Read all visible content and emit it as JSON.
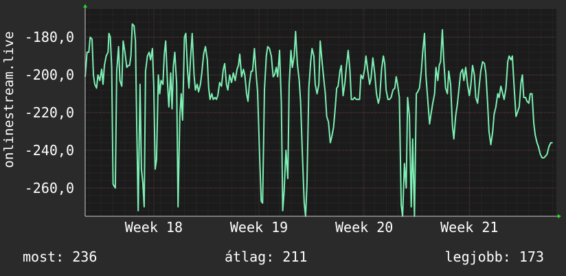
{
  "y_axis_label": "onlinestream.live",
  "stats": {
    "current": "most: 236",
    "average": "átlag: 211",
    "best": "legjobb: 173"
  },
  "colors": {
    "background": "#2a2a2a",
    "plot_background": "#1b1b1b",
    "grid": "#4a4a4a",
    "line": "#7cf0b4",
    "text": "#ffffff",
    "arrow": "#22e022"
  },
  "chart_data": {
    "type": "line",
    "ylim": [
      -275,
      -165
    ],
    "yticks": [
      -180,
      -200,
      -220,
      -240,
      -260
    ],
    "ytick_labels": [
      "-180,0",
      "-200,0",
      "-220,0",
      "-240,0",
      "-260,0"
    ],
    "xlim": [
      0,
      100
    ],
    "xticks": [
      15,
      38,
      61,
      84
    ],
    "xtick_labels": [
      "Week 18",
      "Week 19",
      "Week 20",
      "Week 21"
    ],
    "grid": true,
    "series": [
      {
        "values": [
          [
            0,
            -201
          ],
          [
            0.4,
            -188
          ],
          [
            0.8,
            -188
          ],
          [
            1.1,
            -180
          ],
          [
            1.5,
            -181
          ],
          [
            1.8,
            -200
          ],
          [
            2.1,
            -205
          ],
          [
            2.5,
            -207
          ],
          [
            2.8,
            -200
          ],
          [
            3.2,
            -203
          ],
          [
            3.6,
            -197
          ],
          [
            3.9,
            -205
          ],
          [
            4.2,
            -195
          ],
          [
            4.6,
            -190
          ],
          [
            5,
            -188
          ],
          [
            5.2,
            -178
          ],
          [
            5.5,
            -180
          ],
          [
            5.8,
            -196
          ],
          [
            6.1,
            -258
          ],
          [
            6.6,
            -260
          ],
          [
            6.9,
            -198
          ],
          [
            7.3,
            -185
          ],
          [
            7.6,
            -203
          ],
          [
            8,
            -206
          ],
          [
            8.3,
            -182
          ],
          [
            8.7,
            -188
          ],
          [
            9.1,
            -196
          ],
          [
            9.4,
            -195
          ],
          [
            9.7,
            -195
          ],
          [
            10,
            -190
          ],
          [
            10.3,
            -173
          ],
          [
            10.7,
            -174
          ],
          [
            11,
            -182
          ],
          [
            11.3,
            -230
          ],
          [
            11.6,
            -272
          ],
          [
            12,
            -205
          ],
          [
            12.3,
            -250
          ],
          [
            12.6,
            -257
          ],
          [
            12.9,
            -270
          ],
          [
            13.2,
            -198
          ],
          [
            13.6,
            -190
          ],
          [
            14,
            -188
          ],
          [
            14.3,
            -192
          ],
          [
            14.7,
            -186
          ],
          [
            15,
            -206
          ],
          [
            15.3,
            -250
          ],
          [
            15.6,
            -245
          ],
          [
            16,
            -200
          ],
          [
            16.3,
            -210
          ],
          [
            16.6,
            -203
          ],
          [
            17,
            -205
          ],
          [
            17.3,
            -189
          ],
          [
            17.6,
            -182
          ],
          [
            18,
            -204
          ],
          [
            18.3,
            -217
          ],
          [
            18.7,
            -199
          ],
          [
            19,
            -218
          ],
          [
            19.3,
            -195
          ],
          [
            19.6,
            -188
          ],
          [
            20,
            -205
          ],
          [
            20.3,
            -270
          ],
          [
            20.7,
            -222
          ],
          [
            21,
            -210
          ],
          [
            21.3,
            -224
          ],
          [
            21.7,
            -180
          ],
          [
            22,
            -178
          ],
          [
            22.4,
            -198
          ],
          [
            22.7,
            -207
          ],
          [
            23,
            -193
          ],
          [
            23.4,
            -178
          ],
          [
            23.8,
            -200
          ],
          [
            24.1,
            -208
          ],
          [
            24.5,
            -205
          ],
          [
            24.8,
            -209
          ],
          [
            25.2,
            -205
          ],
          [
            25.5,
            -199
          ],
          [
            25.9,
            -189
          ],
          [
            26.3,
            -185
          ],
          [
            26.7,
            -192
          ],
          [
            27,
            -207
          ],
          [
            27.3,
            -213
          ],
          [
            27.7,
            -210
          ],
          [
            28,
            -213
          ],
          [
            28.4,
            -212
          ],
          [
            28.7,
            -213
          ],
          [
            29,
            -211
          ],
          [
            29.4,
            -204
          ],
          [
            29.8,
            -206
          ],
          [
            30.2,
            -197
          ],
          [
            30.5,
            -194
          ],
          [
            30.9,
            -205
          ],
          [
            31.2,
            -208
          ],
          [
            31.6,
            -200
          ],
          [
            32,
            -204
          ],
          [
            32.4,
            -199
          ],
          [
            32.8,
            -203
          ],
          [
            33.2,
            -197
          ],
          [
            33.5,
            -195
          ],
          [
            33.8,
            -189
          ],
          [
            34.2,
            -201
          ],
          [
            34.6,
            -197
          ],
          [
            34.9,
            -200
          ],
          [
            35.3,
            -210
          ],
          [
            35.6,
            -214
          ],
          [
            35.9,
            -205
          ],
          [
            36.3,
            -198
          ],
          [
            36.6,
            -198
          ],
          [
            37,
            -186
          ],
          [
            37.4,
            -200
          ],
          [
            37.7,
            -209
          ],
          [
            38.1,
            -240
          ],
          [
            38.5,
            -267
          ],
          [
            38.8,
            -268
          ],
          [
            39.2,
            -208
          ],
          [
            39.6,
            -190
          ],
          [
            39.9,
            -185
          ],
          [
            40.3,
            -186
          ],
          [
            40.7,
            -190
          ],
          [
            41.1,
            -201
          ],
          [
            41.4,
            -200
          ],
          [
            41.8,
            -196
          ],
          [
            42.1,
            -201
          ],
          [
            42.5,
            -187
          ],
          [
            42.9,
            -215
          ],
          [
            43.2,
            -272
          ],
          [
            43.5,
            -262
          ],
          [
            43.9,
            -240
          ],
          [
            44.3,
            -255
          ],
          [
            44.6,
            -205
          ],
          [
            45,
            -187
          ],
          [
            45.3,
            -196
          ],
          [
            45.7,
            -190
          ],
          [
            46,
            -177
          ],
          [
            46.4,
            -194
          ],
          [
            46.8,
            -203
          ],
          [
            47.1,
            -214
          ],
          [
            47.5,
            -243
          ],
          [
            47.9,
            -268
          ],
          [
            48.2,
            -275
          ],
          [
            48.5,
            -258
          ],
          [
            48.9,
            -207
          ],
          [
            49.3,
            -193
          ],
          [
            49.6,
            -186
          ],
          [
            50,
            -190
          ],
          [
            50.3,
            -205
          ],
          [
            50.7,
            -210
          ],
          [
            51.1,
            -205
          ],
          [
            51.4,
            -182
          ],
          [
            51.8,
            -193
          ],
          [
            52.2,
            -203
          ],
          [
            52.5,
            -210
          ],
          [
            52.8,
            -222
          ],
          [
            53.2,
            -225
          ],
          [
            53.6,
            -236
          ],
          [
            53.9,
            -233
          ],
          [
            54.3,
            -228
          ],
          [
            54.6,
            -220
          ],
          [
            55,
            -207
          ],
          [
            55.3,
            -206
          ],
          [
            55.7,
            -198
          ],
          [
            56,
            -195
          ],
          [
            56.4,
            -211
          ],
          [
            56.8,
            -204
          ],
          [
            57.1,
            -196
          ],
          [
            57.5,
            -187
          ],
          [
            57.9,
            -198
          ],
          [
            58.2,
            -213
          ],
          [
            58.6,
            -213
          ],
          [
            58.9,
            -212
          ],
          [
            59.3,
            -213
          ],
          [
            59.6,
            -213
          ],
          [
            60,
            -213
          ],
          [
            60.3,
            -200
          ],
          [
            60.7,
            -202
          ],
          [
            61.1,
            -197
          ],
          [
            61.4,
            -190
          ],
          [
            61.8,
            -198
          ],
          [
            62.2,
            -205
          ],
          [
            62.5,
            -202
          ],
          [
            62.9,
            -191
          ],
          [
            63.3,
            -199
          ],
          [
            63.7,
            -210
          ],
          [
            64.1,
            -215
          ],
          [
            64.4,
            -212
          ],
          [
            64.8,
            -197
          ],
          [
            65.2,
            -190
          ],
          [
            65.5,
            -194
          ],
          [
            65.8,
            -208
          ],
          [
            66.2,
            -213
          ],
          [
            66.5,
            -213
          ],
          [
            66.9,
            -212
          ],
          [
            67.3,
            -208
          ],
          [
            67.7,
            -207
          ],
          [
            68,
            -201
          ],
          [
            68.3,
            -205
          ],
          [
            68.7,
            -212
          ],
          [
            69.1,
            -269
          ],
          [
            69.4,
            -275
          ],
          [
            69.8,
            -247
          ],
          [
            70.2,
            -260
          ],
          [
            70.5,
            -212
          ],
          [
            70.9,
            -222
          ],
          [
            71.3,
            -270
          ],
          [
            71.6,
            -234
          ],
          [
            72,
            -275
          ],
          [
            72.4,
            -210
          ],
          [
            72.7,
            -209
          ],
          [
            73.1,
            -207
          ],
          [
            73.5,
            -198
          ],
          [
            73.8,
            -188
          ],
          [
            74.2,
            -178
          ],
          [
            74.5,
            -200
          ],
          [
            74.9,
            -213
          ],
          [
            75.3,
            -226
          ],
          [
            75.6,
            -221
          ],
          [
            76,
            -215
          ],
          [
            76.4,
            -210
          ],
          [
            76.7,
            -196
          ],
          [
            77.1,
            -203
          ],
          [
            77.4,
            -195
          ],
          [
            77.7,
            -193
          ],
          [
            78.1,
            -176
          ],
          [
            78.4,
            -192
          ],
          [
            78.8,
            -207
          ],
          [
            79.2,
            -210
          ],
          [
            79.5,
            -198
          ],
          [
            79.9,
            -205
          ],
          [
            80.3,
            -227
          ],
          [
            80.6,
            -234
          ],
          [
            81,
            -222
          ],
          [
            81.4,
            -215
          ],
          [
            81.7,
            -208
          ],
          [
            82.1,
            -199
          ],
          [
            82.5,
            -197
          ],
          [
            82.8,
            -203
          ],
          [
            83.2,
            -196
          ],
          [
            83.6,
            -205
          ],
          [
            84,
            -211
          ],
          [
            84.3,
            -206
          ],
          [
            84.7,
            -195
          ],
          [
            85.1,
            -200
          ],
          [
            85.4,
            -212
          ],
          [
            85.8,
            -215
          ],
          [
            86.2,
            -205
          ],
          [
            86.5,
            -198
          ],
          [
            86.9,
            -193
          ],
          [
            87.3,
            -194
          ],
          [
            87.6,
            -199
          ],
          [
            88,
            -215
          ],
          [
            88.3,
            -230
          ],
          [
            88.7,
            -237
          ],
          [
            89.1,
            -230
          ],
          [
            89.4,
            -221
          ],
          [
            89.8,
            -217
          ],
          [
            90.2,
            -210
          ],
          [
            90.5,
            -212
          ],
          [
            90.9,
            -206
          ],
          [
            91.3,
            -210
          ],
          [
            91.6,
            -213
          ],
          [
            92,
            -207
          ],
          [
            92.4,
            -193
          ],
          [
            92.7,
            -190
          ],
          [
            93.1,
            -192
          ],
          [
            93.4,
            -190
          ],
          [
            93.8,
            -207
          ],
          [
            94.2,
            -222
          ],
          [
            94.5,
            -220
          ],
          [
            94.9,
            -217
          ],
          [
            95.3,
            -204
          ],
          [
            95.6,
            -200
          ],
          [
            95.9,
            -212
          ],
          [
            96.3,
            -212
          ],
          [
            96.6,
            -214
          ],
          [
            97,
            -215
          ],
          [
            97.3,
            -210
          ],
          [
            97.7,
            -210
          ],
          [
            98.1,
            -226
          ],
          [
            98.4,
            -232
          ],
          [
            98.8,
            -236
          ],
          [
            99.1,
            -238
          ],
          [
            99.5,
            -242
          ],
          [
            99.9,
            -244
          ],
          [
            100.3,
            -244
          ],
          [
            100.7,
            -243
          ],
          [
            101,
            -242
          ],
          [
            101.4,
            -238
          ],
          [
            101.8,
            -236
          ],
          [
            102.2,
            -236
          ]
        ]
      }
    ]
  }
}
